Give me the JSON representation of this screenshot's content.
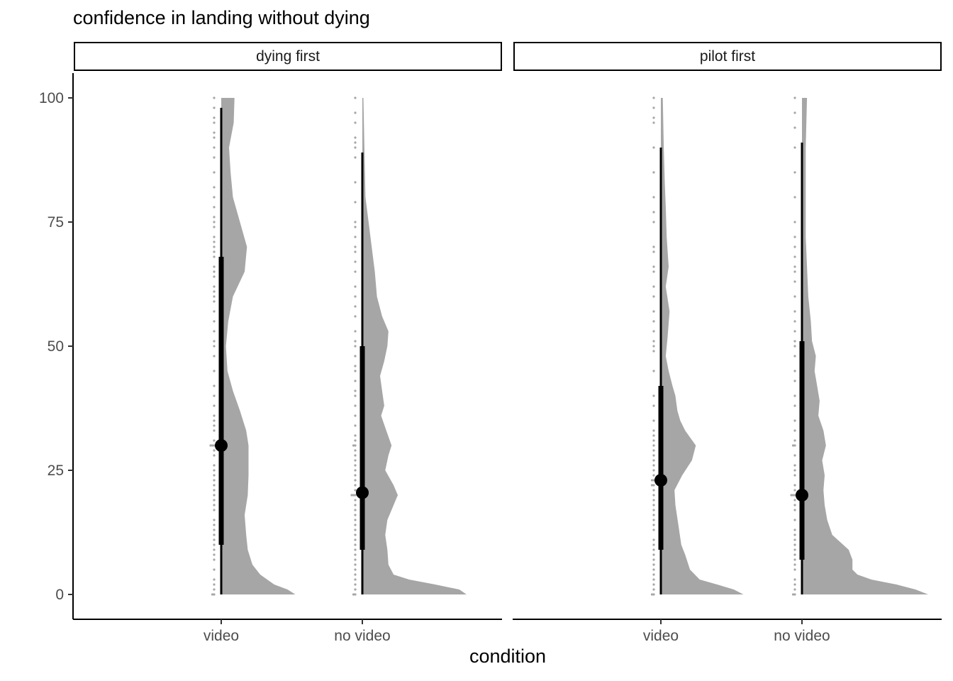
{
  "chart_data": {
    "type": "raincloud",
    "title": "confidence in landing without dying",
    "xlabel": "condition",
    "ylabel": "",
    "ylim": [
      0,
      100
    ],
    "y_ticks": [
      0,
      25,
      50,
      75,
      100
    ],
    "categories": [
      "video",
      "no video"
    ],
    "grid": false,
    "fill_color": "#a6a6a6",
    "point_color": "#a6a6a6",
    "summary_color": "#000000",
    "panels": [
      {
        "facet": "dying first",
        "groups": [
          {
            "category": "video",
            "median": 30,
            "interval_inner": [
              10,
              68
            ],
            "interval_outer": [
              0,
              98
            ],
            "density": [
              [
                0,
                0.95
              ],
              [
                1,
                0.85
              ],
              [
                2,
                0.68
              ],
              [
                4,
                0.5
              ],
              [
                6,
                0.4
              ],
              [
                9,
                0.34
              ],
              [
                12,
                0.32
              ],
              [
                16,
                0.3
              ],
              [
                20,
                0.34
              ],
              [
                24,
                0.35
              ],
              [
                27,
                0.35
              ],
              [
                30,
                0.35
              ],
              [
                33,
                0.32
              ],
              [
                37,
                0.24
              ],
              [
                41,
                0.15
              ],
              [
                45,
                0.08
              ],
              [
                50,
                0.06
              ],
              [
                55,
                0.09
              ],
              [
                60,
                0.15
              ],
              [
                65,
                0.3
              ],
              [
                70,
                0.33
              ],
              [
                75,
                0.24
              ],
              [
                80,
                0.15
              ],
              [
                85,
                0.12
              ],
              [
                90,
                0.1
              ],
              [
                95,
                0.16
              ],
              [
                100,
                0.17
              ]
            ],
            "points": [
              0,
              0,
              1,
              2,
              3,
              5,
              7,
              8,
              9,
              10,
              11,
              12,
              13,
              14,
              15,
              17,
              18,
              19,
              20,
              21,
              22,
              23,
              24,
              25,
              26,
              28,
              29,
              30,
              30,
              30,
              31,
              33,
              34,
              35,
              36,
              38,
              40,
              42,
              45,
              48,
              50,
              51,
              53,
              55,
              57,
              59,
              60,
              61,
              62,
              64,
              65,
              66,
              68,
              69,
              70,
              71,
              72,
              74,
              75,
              76,
              78,
              80,
              82,
              85,
              88,
              90,
              92,
              93,
              95,
              96,
              98,
              100
            ]
          },
          {
            "category": "no video",
            "median": 20.5,
            "interval_inner": [
              9,
              50
            ],
            "interval_outer": [
              0,
              89
            ],
            "density": [
              [
                0,
                1.0
              ],
              [
                1,
                0.93
              ],
              [
                2,
                0.7
              ],
              [
                3,
                0.45
              ],
              [
                4,
                0.3
              ],
              [
                6,
                0.25
              ],
              [
                9,
                0.24
              ],
              [
                12,
                0.22
              ],
              [
                15,
                0.24
              ],
              [
                18,
                0.3
              ],
              [
                20,
                0.34
              ],
              [
                22,
                0.3
              ],
              [
                25,
                0.22
              ],
              [
                28,
                0.25
              ],
              [
                30,
                0.28
              ],
              [
                33,
                0.23
              ],
              [
                36,
                0.18
              ],
              [
                38,
                0.21
              ],
              [
                41,
                0.19
              ],
              [
                44,
                0.17
              ],
              [
                47,
                0.21
              ],
              [
                50,
                0.24
              ],
              [
                53,
                0.25
              ],
              [
                56,
                0.19
              ],
              [
                60,
                0.14
              ],
              [
                65,
                0.12
              ],
              [
                70,
                0.09
              ],
              [
                75,
                0.06
              ],
              [
                80,
                0.03
              ],
              [
                90,
                0.02
              ],
              [
                100,
                0.01
              ]
            ],
            "points": [
              0,
              0,
              1,
              2,
              3,
              4,
              5,
              6,
              7,
              8,
              9,
              10,
              11,
              12,
              13,
              14,
              15,
              16,
              17,
              18,
              19,
              20,
              20,
              20,
              21,
              22,
              23,
              24,
              25,
              26,
              27,
              28,
              29,
              30,
              30,
              31,
              32,
              34,
              36,
              38,
              40,
              41,
              43,
              45,
              46,
              48,
              50,
              51,
              53,
              56,
              58,
              60,
              62,
              65,
              67,
              69,
              70,
              72,
              74,
              75,
              79,
              83,
              88,
              90,
              91,
              92,
              95,
              97,
              100
            ]
          }
        ]
      },
      {
        "facet": "pilot first",
        "groups": [
          {
            "category": "video",
            "median": 23,
            "interval_inner": [
              9,
              42
            ],
            "interval_outer": [
              0,
              90
            ],
            "density": [
              [
                0,
                0.85
              ],
              [
                1,
                0.75
              ],
              [
                2,
                0.58
              ],
              [
                3,
                0.4
              ],
              [
                5,
                0.3
              ],
              [
                8,
                0.25
              ],
              [
                10,
                0.21
              ],
              [
                14,
                0.18
              ],
              [
                18,
                0.15
              ],
              [
                21,
                0.14
              ],
              [
                24,
                0.22
              ],
              [
                27,
                0.32
              ],
              [
                30,
                0.36
              ],
              [
                33,
                0.25
              ],
              [
                35,
                0.2
              ],
              [
                37,
                0.17
              ],
              [
                40,
                0.15
              ],
              [
                42,
                0.12
              ],
              [
                45,
                0.08
              ],
              [
                48,
                0.05
              ],
              [
                52,
                0.07
              ],
              [
                57,
                0.09
              ],
              [
                62,
                0.05
              ],
              [
                66,
                0.08
              ],
              [
                72,
                0.06
              ],
              [
                78,
                0.05
              ],
              [
                83,
                0.04
              ],
              [
                90,
                0.03
              ],
              [
                100,
                0.02
              ]
            ],
            "points": [
              0,
              0,
              1,
              2,
              3,
              4,
              5,
              6,
              7,
              8,
              9,
              10,
              11,
              13,
              14,
              15,
              16,
              17,
              18,
              19,
              20,
              21,
              22,
              22,
              23,
              23,
              24,
              25,
              26,
              27,
              28,
              29,
              30,
              31,
              32,
              33,
              35,
              38,
              40,
              45,
              49,
              50,
              51,
              53,
              55,
              57,
              60,
              62,
              65,
              66,
              69,
              70,
              75,
              77,
              80,
              85,
              90,
              95,
              96,
              98,
              100
            ]
          },
          {
            "category": "no video",
            "median": 20,
            "interval_inner": [
              7,
              51
            ],
            "interval_outer": [
              0,
              91
            ],
            "density": [
              [
                0,
                1.0
              ],
              [
                1,
                0.9
              ],
              [
                2,
                0.75
              ],
              [
                3,
                0.55
              ],
              [
                4,
                0.44
              ],
              [
                5,
                0.4
              ],
              [
                7,
                0.4
              ],
              [
                9,
                0.37
              ],
              [
                12,
                0.24
              ],
              [
                15,
                0.2
              ],
              [
                18,
                0.18
              ],
              [
                21,
                0.17
              ],
              [
                24,
                0.18
              ],
              [
                27,
                0.16
              ],
              [
                30,
                0.19
              ],
              [
                33,
                0.17
              ],
              [
                36,
                0.13
              ],
              [
                39,
                0.14
              ],
              [
                42,
                0.12
              ],
              [
                45,
                0.1
              ],
              [
                48,
                0.11
              ],
              [
                51,
                0.08
              ],
              [
                55,
                0.07
              ],
              [
                60,
                0.05
              ],
              [
                66,
                0.04
              ],
              [
                72,
                0.03
              ],
              [
                80,
                0.03
              ],
              [
                90,
                0.03
              ],
              [
                100,
                0.04
              ]
            ],
            "points": [
              0,
              0,
              1,
              2,
              3,
              5,
              6,
              7,
              8,
              9,
              10,
              11,
              12,
              13,
              15,
              17,
              18,
              19,
              20,
              20,
              20,
              21,
              22,
              24,
              25,
              26,
              28,
              30,
              30,
              31,
              33,
              35,
              38,
              40,
              43,
              45,
              48,
              50,
              51,
              53,
              55,
              57,
              60,
              63,
              65,
              66,
              68,
              70,
              72,
              75,
              80,
              85,
              90,
              94,
              97,
              100
            ]
          }
        ]
      }
    ]
  }
}
